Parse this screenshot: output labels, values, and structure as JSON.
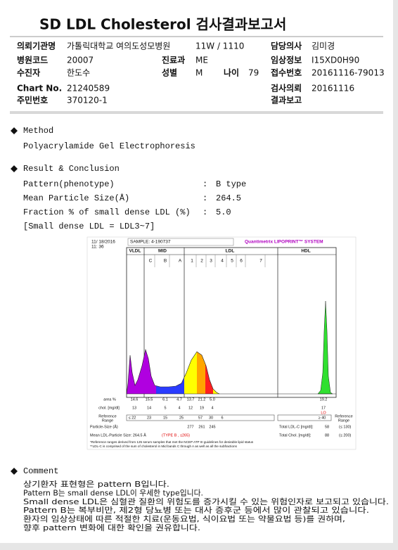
{
  "header": {
    "title": "SD LDL Cholesterol 검사결과보고서",
    "ward": "11W / 1110"
  },
  "fields": [
    {
      "label": "의뢰기관명",
      "value": "가톨릭대학교 여의도성모병원"
    },
    {
      "label": "담당의사",
      "value": "김미경"
    },
    {
      "label": "병원코드",
      "value": "20007"
    },
    {
      "label": "진료과",
      "value": "ME"
    },
    {
      "label": "임상정보",
      "value": "I15XD0H90"
    },
    {
      "label": "수진자",
      "value": "한도수"
    },
    {
      "label": "성별",
      "value": "M"
    },
    {
      "label": "나이",
      "value": "79"
    },
    {
      "label": "접수번호",
      "value": "20161116-79013"
    },
    {
      "label": "Chart No.",
      "value": "21240589"
    },
    {
      "label": "검사의뢰",
      "value": "20161116"
    },
    {
      "label": "주민번호",
      "value": "370120-1"
    },
    {
      "label": "결과보고"
    }
  ],
  "method": {
    "heading": "Method",
    "text": "Polyacrylamide Gel Electrophoresis"
  },
  "result": {
    "heading": "Result & Conclusion",
    "separator": ":",
    "items": [
      {
        "label": "Pattern(phenotype)",
        "value": "B type"
      },
      {
        "label": "Mean Particle Size(Å)",
        "value": "264.5"
      },
      {
        "label": "Fraction % of small dense LDL (%)",
        "value": "5.0"
      }
    ],
    "note": "[Small dense LDL = LDL3~7]"
  },
  "electrophoregram": {
    "date": "11/ 18/2016",
    "time": "11: 36",
    "sample": "SAMPLE:  4-190737",
    "system": "Quantimetrix LIPOPRINT™ SYSTEM",
    "classes": [
      "VLDL",
      "MID",
      "LDL",
      "HDL"
    ],
    "bands": [
      "C",
      "B",
      "A",
      "1",
      "2",
      "3",
      "4",
      "5",
      "6",
      "7"
    ],
    "area": {
      "label": "area %",
      "values": [
        "14.6",
        "15.5",
        "6.1",
        "4.7",
        "13.7",
        "21.2",
        "5.0"
      ],
      "hdl": "19.2"
    },
    "chol": {
      "label": "chol. [mg/dl]",
      "values": [
        "13",
        "14",
        "5",
        "4",
        "12",
        "19",
        "4"
      ],
      "hdl": "17",
      "flag": "LO"
    },
    "reference": {
      "label": [
        "Reference",
        "Range"
      ],
      "values": [
        "≤ 22",
        "23",
        "15",
        "25",
        "57",
        "30",
        "6"
      ],
      "hdl": "≥ 40"
    },
    "particle_size": {
      "label": "Particle-Size (Å)",
      "values": [
        "277",
        "261",
        "245"
      ]
    },
    "mean_size": "Mean LDL-Particle Size:  264.5 Å",
    "type_note": "(TYPE B , ≤265)",
    "totals": [
      {
        "label": "Total LDL-C [mg/dl]:",
        "value": "58",
        "ref": "(≤ 130)"
      },
      {
        "label": "Total Chol. [mg/dl]:",
        "value": "88",
        "ref": "(≤ 200)"
      }
    ],
    "footnotes": [
      "*Reference ranges derived from 125 serum samples that met the NCEP ATP III guidelines for desirable lipid status",
      "**LDL-C is comprised of the sum of cholesterol in Mid bands C through A as well as all the subfractions"
    ]
  },
  "comment": {
    "heading": "Comment",
    "lines": [
      "상기환자 표현형은 pattern B입니다.",
      "Pattern B는 small dense LDL이 우세한 type입니다.",
      "Small dense LDL은 심혈관 질환의 위험도를 증가시킬 수 있는 위험인자로 보고되고 있습니다.",
      "Pattern B는 복부비만, 제2형 당뇨병 또는 대사 증후군 등에서 많이 관찰되고 있습니다.",
      "환자의 임상상태에 따른 적절한 치료(운동요법, 식이요법 또는 약물요법 등)를 권하며,",
      "향후 pattern 변화에 대한 확인을 권유합니다."
    ]
  }
}
